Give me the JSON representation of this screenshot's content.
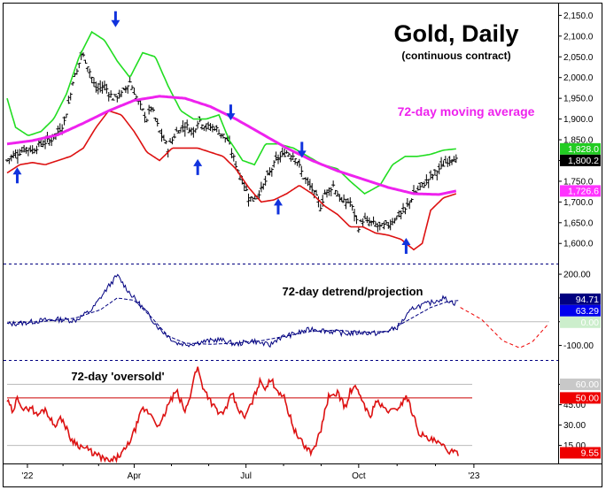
{
  "chart_data": [
    {
      "panel": "price",
      "type": "ohlc-bar",
      "title": "Gold, Daily",
      "subtitle": "(continuous contract)",
      "annotation": "72-day moving average",
      "y_ticks": [
        "2,150.0",
        "2,100.0",
        "2,050.0",
        "2,000.0",
        "1,950.0",
        "1,900.0",
        "1,850.0",
        "1,800.0",
        "1,750.0",
        "1,700.0",
        "1,650.0",
        "1,600.0"
      ],
      "ylim": [
        1560,
        2170
      ],
      "labels": [
        {
          "text": "1,828.0",
          "value": 1828.0,
          "bg": "#22cc22",
          "fg": "#ffffff"
        },
        {
          "text": "1,800.2",
          "value": 1800.2,
          "bg": "#000000",
          "fg": "#ffffff"
        },
        {
          "text": "1,726.6",
          "value": 1726.6,
          "bg": "#ff33ff",
          "fg": "#ffffff"
        }
      ],
      "price": {
        "t": [
          0,
          8,
          15,
          22,
          30,
          40,
          52,
          60,
          67,
          71,
          75,
          78,
          82,
          88,
          95,
          105,
          115,
          125,
          135,
          145,
          155,
          165,
          170,
          180,
          190,
          200,
          210,
          220,
          226,
          235,
          245,
          255,
          260,
          270,
          280,
          285,
          290,
          300,
          310,
          315,
          320,
          330,
          340,
          350,
          360,
          365,
          370,
          375,
          385,
          395,
          405,
          410,
          415,
          421,
          425,
          430,
          440,
          450,
          460,
          470,
          480,
          490,
          500,
          510,
          520,
          527,
          530
        ],
        "close": [
          1800,
          1815,
          1820,
          1830,
          1825,
          1840,
          1850,
          1870,
          1890,
          1925,
          1960,
          2000,
          2010,
          2060,
          2030,
          1970,
          1980,
          1950,
          1960,
          1990,
          1940,
          1900,
          1930,
          1870,
          1830,
          1870,
          1885,
          1870,
          1900,
          1880,
          1880,
          1860,
          1850,
          1790,
          1740,
          1715,
          1705,
          1730,
          1770,
          1790,
          1805,
          1820,
          1810,
          1760,
          1730,
          1710,
          1690,
          1720,
          1740,
          1700,
          1700,
          1670,
          1640,
          1660,
          1650,
          1650,
          1640,
          1645,
          1665,
          1680,
          1720,
          1740,
          1760,
          1780,
          1800,
          1810,
          1800
        ]
      },
      "ma72": {
        "t": [
          0,
          30,
          60,
          90,
          120,
          150,
          180,
          210,
          240,
          270,
          300,
          330,
          360,
          390,
          420,
          450,
          480,
          510,
          530
        ],
        "values": [
          1840,
          1848,
          1862,
          1890,
          1920,
          1945,
          1955,
          1950,
          1930,
          1900,
          1865,
          1830,
          1800,
          1775,
          1755,
          1735,
          1720,
          1718,
          1726.6
        ]
      },
      "upper_band": {
        "t": [
          0,
          10,
          25,
          40,
          55,
          70,
          85,
          100,
          115,
          130,
          145,
          160,
          175,
          190,
          205,
          220,
          235,
          250,
          262,
          278,
          292,
          305,
          320,
          338,
          355,
          372,
          390,
          405,
          422,
          440,
          455,
          470,
          485,
          500,
          515,
          530
        ],
        "values": [
          1950,
          1880,
          1860,
          1870,
          1900,
          1960,
          2050,
          2110,
          2090,
          2040,
          2000,
          2060,
          2050,
          1980,
          1920,
          1900,
          1900,
          1910,
          1850,
          1800,
          1790,
          1840,
          1840,
          1830,
          1810,
          1790,
          1780,
          1750,
          1720,
          1740,
          1790,
          1810,
          1810,
          1815,
          1825,
          1828
        ]
      },
      "lower_band": {
        "t": [
          0,
          15,
          30,
          45,
          60,
          75,
          90,
          105,
          120,
          135,
          150,
          165,
          180,
          195,
          210,
          225,
          240,
          255,
          270,
          285,
          300,
          315,
          330,
          345,
          360,
          375,
          390,
          405,
          420,
          435,
          450,
          465,
          480,
          490,
          500,
          515,
          530
        ],
        "values": [
          1770,
          1790,
          1795,
          1790,
          1800,
          1810,
          1830,
          1880,
          1920,
          1910,
          1870,
          1820,
          1800,
          1830,
          1830,
          1830,
          1820,
          1810,
          1780,
          1735,
          1700,
          1705,
          1720,
          1740,
          1720,
          1690,
          1670,
          1640,
          1640,
          1625,
          1620,
          1610,
          1585,
          1600,
          1680,
          1710,
          1720
        ]
      },
      "arrows": [
        {
          "dir": "up",
          "t": 12,
          "value": 1745
        },
        {
          "dir": "down",
          "t": 128,
          "value": 2160
        },
        {
          "dir": "up",
          "t": 225,
          "value": 1765
        },
        {
          "dir": "down",
          "t": 264,
          "value": 1935
        },
        {
          "dir": "up",
          "t": 320,
          "value": 1670
        },
        {
          "dir": "down",
          "t": 348,
          "value": 1845
        },
        {
          "dir": "up",
          "t": 471,
          "value": 1575
        }
      ]
    },
    {
      "panel": "detrend",
      "type": "line",
      "title": "72-day detrend/projection",
      "y_ticks": [
        "200.00",
        "100.00",
        "0.00",
        "-100.00"
      ],
      "ylim": [
        -150,
        230
      ],
      "labels": [
        {
          "text": "94.71",
          "value": 94.71,
          "bg": "#000080",
          "fg": "#ffffff"
        },
        {
          "text": "63.29",
          "value": 63.29,
          "bg": "#0000ee",
          "fg": "#ffffff"
        },
        {
          "text": "0.00",
          "value": 0,
          "bg": "#cceecc",
          "fg": "#ffffff"
        }
      ],
      "detrend": {
        "t": [
          0,
          20,
          40,
          60,
          80,
          100,
          120,
          130,
          145,
          160,
          180,
          200,
          215,
          230,
          250,
          270,
          290,
          310,
          320,
          340,
          360,
          380,
          400,
          420,
          440,
          460,
          480,
          500,
          515,
          530
        ],
        "values": [
          -10,
          -5,
          5,
          10,
          5,
          50,
          150,
          195,
          120,
          60,
          -30,
          -90,
          -95,
          -85,
          -75,
          -95,
          -80,
          -100,
          -70,
          -50,
          -30,
          -40,
          -50,
          -45,
          -50,
          -25,
          60,
          80,
          100,
          75
        ]
      },
      "smooth": {
        "t": [
          0,
          40,
          80,
          110,
          130,
          150,
          170,
          190,
          210,
          240,
          270,
          300,
          330,
          360,
          390,
          420,
          450,
          475,
          500,
          520,
          535
        ],
        "values": [
          -5,
          0,
          15,
          50,
          100,
          90,
          20,
          -60,
          -90,
          -95,
          -90,
          -80,
          -60,
          -40,
          -35,
          -45,
          -40,
          10,
          60,
          85,
          90
        ]
      },
      "projection": {
        "t": [
          535,
          560,
          585,
          605,
          620,
          640
        ],
        "values": [
          60,
          10,
          -80,
          -110,
          -85,
          -5
        ]
      }
    },
    {
      "panel": "oversold",
      "type": "line",
      "title": "72-day 'oversold'",
      "y_ticks": [
        "60.00",
        "45.00",
        "30.00",
        "15.00"
      ],
      "ylim": [
        3,
        76
      ],
      "labels": [
        {
          "text": "60.00",
          "value": 60.0,
          "bg": "#c8c8c8",
          "fg": "#ffffff"
        },
        {
          "text": "50.00",
          "value": 50.0,
          "bg": "#ee0000",
          "fg": "#ffffff"
        },
        {
          "text": "9.55",
          "value": 9.55,
          "bg": "#ee0000",
          "fg": "#ffffff"
        }
      ],
      "series": {
        "t": [
          0,
          8,
          12,
          20,
          28,
          35,
          45,
          55,
          65,
          75,
          85,
          95,
          105,
          115,
          120,
          128,
          140,
          150,
          160,
          170,
          180,
          190,
          200,
          210,
          215,
          220,
          225,
          230,
          240,
          250,
          260,
          265,
          270,
          280,
          290,
          298,
          305,
          312,
          320,
          326,
          332,
          340,
          350,
          360,
          370,
          375,
          380,
          385,
          390,
          395,
          400,
          405,
          410,
          420,
          428,
          435,
          445,
          455,
          465,
          471,
          478,
          486,
          495,
          505,
          515,
          522,
          527,
          533
        ],
        "values": [
          48,
          38,
          52,
          40,
          44,
          37,
          42,
          30,
          35,
          20,
          15,
          12,
          8,
          5,
          3,
          5,
          12,
          25,
          42,
          38,
          28,
          45,
          55,
          40,
          48,
          65,
          72,
          60,
          48,
          38,
          42,
          55,
          45,
          35,
          48,
          62,
          58,
          63,
          55,
          52,
          40,
          25,
          15,
          10,
          25,
          40,
          52,
          50,
          55,
          48,
          42,
          55,
          58,
          48,
          35,
          48,
          42,
          40,
          45,
          52,
          40,
          25,
          20,
          18,
          14,
          11,
          9,
          9.55
        ]
      },
      "ref_lines": [
        60,
        50,
        15
      ]
    }
  ],
  "x_axis": {
    "ticks": [
      {
        "label": "'22",
        "t": 24
      },
      {
        "label": "Apr",
        "t": 150
      },
      {
        "label": "Jul",
        "t": 282
      },
      {
        "label": "Oct",
        "t": 415
      },
      {
        "label": "'23",
        "t": 551
      }
    ],
    "tlim": [
      0,
      640
    ]
  }
}
